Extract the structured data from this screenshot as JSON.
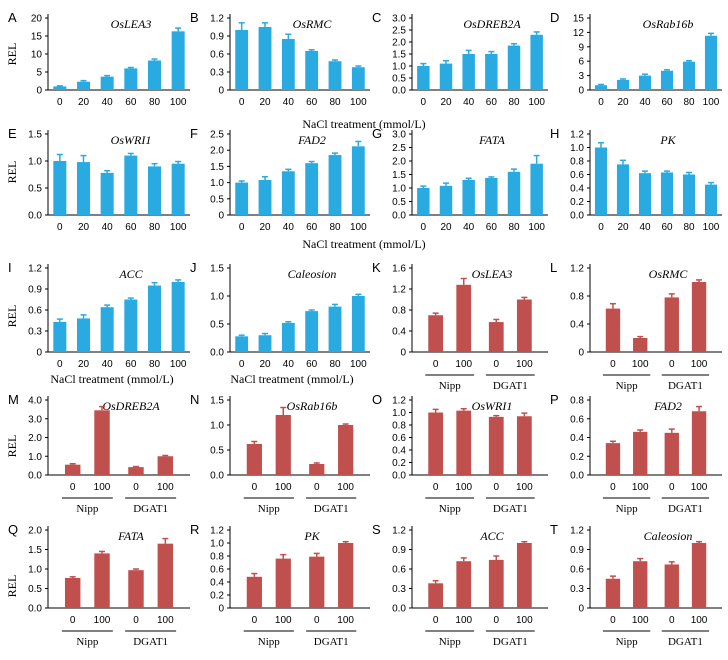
{
  "figure": {
    "ylabel_text": "REL",
    "row_xlabel": "NaCl treatment (mmol/L)",
    "colors": {
      "blue": "#29ABE2",
      "red": "#C0504D",
      "axis": "#000000"
    }
  },
  "chart_data": [
    {
      "panel": "A",
      "title": "OsLEA3",
      "type": "bar",
      "style": "nacl",
      "color": "blue",
      "categories": [
        "0",
        "20",
        "40",
        "60",
        "80",
        "100"
      ],
      "values": [
        1.0,
        2.3,
        3.7,
        6.0,
        8.2,
        16.3
      ],
      "errors": [
        0.15,
        0.3,
        0.3,
        0.25,
        0.4,
        0.9
      ],
      "ylim": [
        0,
        20
      ],
      "yticks": [
        "0",
        "5",
        "10",
        "15",
        "20"
      ]
    },
    {
      "panel": "B",
      "title": "OsRMC",
      "type": "bar",
      "style": "nacl",
      "color": "blue",
      "categories": [
        "0",
        "20",
        "40",
        "60",
        "80",
        "100"
      ],
      "values": [
        1.0,
        1.05,
        0.85,
        0.65,
        0.48,
        0.38
      ],
      "errors": [
        0.12,
        0.07,
        0.08,
        0.02,
        0.02,
        0.02
      ],
      "ylim": [
        0,
        1.2
      ],
      "yticks": [
        "0",
        "0.3",
        "0.6",
        "0.9",
        "1.2"
      ]
    },
    {
      "panel": "C",
      "title": "OsDREB2A",
      "type": "bar",
      "style": "nacl",
      "color": "blue",
      "categories": [
        "0",
        "20",
        "40",
        "60",
        "80",
        "100"
      ],
      "values": [
        1.0,
        1.1,
        1.5,
        1.5,
        1.85,
        2.3
      ],
      "errors": [
        0.1,
        0.12,
        0.15,
        0.1,
        0.08,
        0.12
      ],
      "ylim": [
        0,
        3.0
      ],
      "yticks": [
        "0.0",
        "0.5",
        "1.0",
        "1.5",
        "2.0",
        "2.5",
        "3.0"
      ]
    },
    {
      "panel": "D",
      "title": "OsRab16b",
      "type": "bar",
      "style": "nacl",
      "color": "blue",
      "categories": [
        "0",
        "20",
        "40",
        "60",
        "80",
        "100"
      ],
      "values": [
        1.0,
        2.1,
        3.0,
        4.0,
        5.9,
        11.3
      ],
      "errors": [
        0.15,
        0.2,
        0.3,
        0.2,
        0.2,
        0.5
      ],
      "ylim": [
        0,
        15
      ],
      "yticks": [
        "0",
        "3",
        "6",
        "9",
        "12",
        "15"
      ]
    },
    {
      "panel": "E",
      "title": "OsWRI1",
      "type": "bar",
      "style": "nacl",
      "color": "blue",
      "categories": [
        "0",
        "20",
        "40",
        "60",
        "80",
        "100"
      ],
      "values": [
        1.0,
        0.98,
        0.78,
        1.1,
        0.9,
        0.95
      ],
      "errors": [
        0.12,
        0.12,
        0.04,
        0.04,
        0.05,
        0.04
      ],
      "ylim": [
        0,
        1.5
      ],
      "yticks": [
        "0.0",
        "0.5",
        "1.0",
        "1.5"
      ]
    },
    {
      "panel": "F",
      "title": "FAD2",
      "type": "bar",
      "style": "nacl",
      "color": "blue",
      "categories": [
        "0",
        "20",
        "40",
        "60",
        "80",
        "100"
      ],
      "values": [
        1.0,
        1.08,
        1.35,
        1.6,
        1.85,
        2.12
      ],
      "errors": [
        0.05,
        0.1,
        0.06,
        0.05,
        0.06,
        0.15
      ],
      "ylim": [
        0,
        2.5
      ],
      "yticks": [
        "0",
        "0.5",
        "1.0",
        "1.5",
        "2.0",
        "2.5"
      ]
    },
    {
      "panel": "G",
      "title": "FATA",
      "type": "bar",
      "style": "nacl",
      "color": "blue",
      "categories": [
        "0",
        "20",
        "40",
        "60",
        "80",
        "100"
      ],
      "values": [
        1.0,
        1.08,
        1.3,
        1.37,
        1.6,
        1.9
      ],
      "errors": [
        0.07,
        0.1,
        0.06,
        0.04,
        0.1,
        0.3
      ],
      "ylim": [
        0,
        3.0
      ],
      "yticks": [
        "0.0",
        "0.5",
        "1.0",
        "1.5",
        "2.0",
        "2.5",
        "3.0"
      ]
    },
    {
      "panel": "H",
      "title": "PK",
      "type": "bar",
      "style": "nacl",
      "color": "blue",
      "categories": [
        "0",
        "20",
        "40",
        "60",
        "80",
        "100"
      ],
      "values": [
        1.0,
        0.75,
        0.62,
        0.63,
        0.6,
        0.45
      ],
      "errors": [
        0.07,
        0.06,
        0.03,
        0.02,
        0.03,
        0.03
      ],
      "ylim": [
        0,
        1.2
      ],
      "yticks": [
        "0.0",
        "0.2",
        "0.4",
        "0.6",
        "0.8",
        "1.0",
        "1.2"
      ]
    },
    {
      "panel": "I",
      "title": "ACC",
      "type": "bar",
      "style": "nacl",
      "color": "blue",
      "categories": [
        "0",
        "20",
        "40",
        "60",
        "80",
        "100"
      ],
      "values": [
        0.43,
        0.48,
        0.64,
        0.75,
        0.95,
        1.0
      ],
      "errors": [
        0.04,
        0.05,
        0.03,
        0.02,
        0.04,
        0.03
      ],
      "ylim": [
        0,
        1.2
      ],
      "yticks": [
        "0",
        "0.3",
        "0.6",
        "0.9",
        "1.2"
      ]
    },
    {
      "panel": "J",
      "title": "Caleosion",
      "type": "bar",
      "style": "nacl",
      "color": "blue",
      "categories": [
        "0",
        "20",
        "40",
        "60",
        "80",
        "100"
      ],
      "values": [
        0.28,
        0.3,
        0.52,
        0.73,
        0.81,
        1.0
      ],
      "errors": [
        0.02,
        0.03,
        0.02,
        0.02,
        0.04,
        0.03
      ],
      "ylim": [
        0,
        1.5
      ],
      "yticks": [
        "0.0",
        "0.5",
        "1.0",
        "1.5"
      ]
    },
    {
      "panel": "K",
      "title": "OsLEA3",
      "type": "bar",
      "style": "geno",
      "color": "red",
      "categories": [
        "0",
        "100",
        "0",
        "100"
      ],
      "groups": [
        "Nipp",
        "DGAT1"
      ],
      "values": [
        0.7,
        1.28,
        0.57,
        1.0
      ],
      "errors": [
        0.04,
        0.12,
        0.05,
        0.04
      ],
      "ylim": [
        0,
        1.6
      ],
      "yticks": [
        "0",
        "0.4",
        "0.8",
        "1.2",
        "1.6"
      ]
    },
    {
      "panel": "L",
      "title": "OsRMC",
      "type": "bar",
      "style": "geno",
      "color": "red",
      "categories": [
        "0",
        "100",
        "0",
        "100"
      ],
      "groups": [
        "Nipp",
        "DGAT1"
      ],
      "values": [
        0.62,
        0.2,
        0.78,
        1.0
      ],
      "errors": [
        0.07,
        0.02,
        0.05,
        0.03
      ],
      "ylim": [
        0,
        1.2
      ],
      "yticks": [
        "0",
        "0.4",
        "0.8",
        "1.2"
      ]
    },
    {
      "panel": "M",
      "title": "OsDREB2A",
      "type": "bar",
      "style": "geno",
      "color": "red",
      "categories": [
        "0",
        "100",
        "0",
        "100"
      ],
      "groups": [
        "Nipp",
        "DGAT1"
      ],
      "values": [
        0.55,
        3.45,
        0.42,
        1.0
      ],
      "errors": [
        0.05,
        0.2,
        0.03,
        0.04
      ],
      "ylim": [
        0,
        4.0
      ],
      "yticks": [
        "0.0",
        "1.0",
        "2.0",
        "3.0",
        "4.0"
      ]
    },
    {
      "panel": "N",
      "title": "OsRab16b",
      "type": "bar",
      "style": "geno",
      "color": "red",
      "categories": [
        "0",
        "100",
        "0",
        "100"
      ],
      "groups": [
        "Nipp",
        "DGAT1"
      ],
      "values": [
        0.62,
        1.2,
        0.22,
        1.0
      ],
      "errors": [
        0.05,
        0.15,
        0.02,
        0.02
      ],
      "ylim": [
        0,
        1.5
      ],
      "yticks": [
        "0.0",
        "0.5",
        "1.0",
        "1.5"
      ]
    },
    {
      "panel": "O",
      "title": "OsWRI1",
      "type": "bar",
      "style": "geno",
      "color": "red",
      "categories": [
        "0",
        "100",
        "0",
        "100"
      ],
      "groups": [
        "Nipp",
        "DGAT1"
      ],
      "values": [
        1.0,
        1.03,
        0.93,
        0.94
      ],
      "errors": [
        0.05,
        0.03,
        0.02,
        0.05
      ],
      "ylim": [
        0,
        1.2
      ],
      "yticks": [
        "0.0",
        "0.2",
        "0.4",
        "0.6",
        "0.8",
        "1.0",
        "1.2"
      ]
    },
    {
      "panel": "P",
      "title": "FAD2",
      "type": "bar",
      "style": "geno",
      "color": "red",
      "categories": [
        "0",
        "100",
        "0",
        "100"
      ],
      "groups": [
        "Nipp",
        "DGAT1"
      ],
      "values": [
        0.34,
        0.46,
        0.45,
        0.68
      ],
      "errors": [
        0.02,
        0.02,
        0.04,
        0.05
      ],
      "ylim": [
        0,
        0.8
      ],
      "yticks": [
        "0.0",
        "0.2",
        "0.4",
        "0.6",
        "0.8"
      ]
    },
    {
      "panel": "Q",
      "title": "FATA",
      "type": "bar",
      "style": "geno",
      "color": "red",
      "categories": [
        "0",
        "100",
        "0",
        "100"
      ],
      "groups": [
        "Nipp",
        "DGAT1"
      ],
      "values": [
        0.77,
        1.4,
        0.97,
        1.65
      ],
      "errors": [
        0.03,
        0.05,
        0.03,
        0.13
      ],
      "ylim": [
        0,
        2.0
      ],
      "yticks": [
        "0.0",
        "0.5",
        "1.0",
        "1.5",
        "2.0"
      ]
    },
    {
      "panel": "R",
      "title": "PK",
      "type": "bar",
      "style": "geno",
      "color": "red",
      "categories": [
        "0",
        "100",
        "0",
        "100"
      ],
      "groups": [
        "Nipp",
        "DGAT1"
      ],
      "values": [
        0.48,
        0.76,
        0.79,
        1.0
      ],
      "errors": [
        0.05,
        0.06,
        0.05,
        0.02
      ],
      "ylim": [
        0,
        1.2
      ],
      "yticks": [
        "0",
        "0.2",
        "0.4",
        "0.6",
        "0.8",
        "1.0",
        "1.2"
      ]
    },
    {
      "panel": "S",
      "title": "ACC",
      "type": "bar",
      "style": "geno",
      "color": "red",
      "categories": [
        "0",
        "100",
        "0",
        "100"
      ],
      "groups": [
        "Nipp",
        "DGAT1"
      ],
      "values": [
        0.38,
        0.72,
        0.74,
        1.0
      ],
      "errors": [
        0.04,
        0.05,
        0.06,
        0.02
      ],
      "ylim": [
        0,
        1.2
      ],
      "yticks": [
        "0.0",
        "0.3",
        "0.6",
        "0.9",
        "1.2"
      ]
    },
    {
      "panel": "T",
      "title": "Caleosion",
      "type": "bar",
      "style": "geno",
      "color": "red",
      "categories": [
        "0",
        "100",
        "0",
        "100"
      ],
      "groups": [
        "Nipp",
        "DGAT1"
      ],
      "values": [
        0.45,
        0.72,
        0.67,
        1.0
      ],
      "errors": [
        0.04,
        0.04,
        0.04,
        0.02
      ],
      "ylim": [
        0,
        1.2
      ],
      "yticks": [
        "0",
        "0.3",
        "0.6",
        "0.9",
        "1.2"
      ]
    }
  ]
}
